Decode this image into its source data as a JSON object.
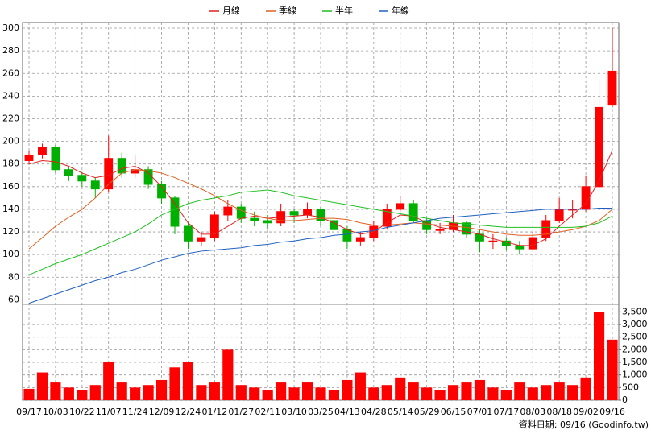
{
  "chart_data": {
    "type": "candlestick",
    "categories": [
      "09/17",
      null,
      "10/03",
      null,
      "10/22",
      null,
      "11/07",
      null,
      "11/24",
      null,
      "12/09",
      null,
      "12/24",
      null,
      "01/12",
      null,
      "01/27",
      null,
      "02/11",
      null,
      "03/10",
      null,
      "03/25",
      null,
      "04/13",
      null,
      "04/28",
      null,
      "05/14",
      null,
      "05/29",
      null,
      "06/15",
      null,
      "07/01",
      null,
      "07/17",
      null,
      "08/03",
      null,
      "08/18",
      null,
      "09/02",
      null,
      "09/16"
    ],
    "open": [
      183,
      188,
      195,
      175,
      170,
      165,
      158,
      185,
      172,
      175,
      162,
      150,
      125,
      112,
      115,
      135,
      142,
      132,
      130,
      128,
      138,
      135,
      140,
      130,
      122,
      112,
      115,
      125,
      140,
      145,
      130,
      122,
      122,
      128,
      118,
      112,
      112,
      108,
      105,
      115,
      130,
      140,
      140,
      160,
      232
    ],
    "high": [
      192,
      198,
      197,
      178,
      173,
      168,
      205,
      190,
      188,
      178,
      165,
      152,
      128,
      120,
      138,
      148,
      145,
      138,
      135,
      145,
      140,
      146,
      142,
      133,
      125,
      120,
      130,
      145,
      152,
      148,
      132,
      128,
      135,
      130,
      122,
      118,
      115,
      112,
      120,
      135,
      150,
      148,
      170,
      255,
      300
    ],
    "low": [
      180,
      185,
      172,
      165,
      160,
      150,
      155,
      168,
      168,
      158,
      145,
      118,
      105,
      108,
      112,
      130,
      128,
      125,
      122,
      125,
      128,
      132,
      125,
      115,
      105,
      108,
      112,
      122,
      138,
      128,
      118,
      118,
      120,
      115,
      102,
      105,
      104,
      100,
      104,
      112,
      128,
      132,
      138,
      158,
      230
    ],
    "close": [
      188,
      195,
      175,
      170,
      165,
      158,
      185,
      172,
      175,
      162,
      150,
      125,
      112,
      115,
      135,
      142,
      132,
      130,
      128,
      138,
      135,
      140,
      130,
      122,
      112,
      115,
      125,
      140,
      145,
      130,
      122,
      122,
      128,
      118,
      112,
      112,
      108,
      105,
      115,
      130,
      140,
      140,
      160,
      230,
      262
    ],
    "up_color": "#ff0000",
    "down_color": "#00b000",
    "ylim": [
      56,
      305
    ],
    "yticks": [
      60,
      80,
      100,
      120,
      140,
      160,
      180,
      200,
      220,
      240,
      260,
      280,
      300
    ],
    "grid": true,
    "series": [
      {
        "name": "月線",
        "color": "#e02020",
        "values": [
          180,
          183,
          182,
          178,
          172,
          168,
          170,
          176,
          178,
          172,
          160,
          145,
          128,
          118,
          118,
          125,
          132,
          134,
          132,
          133,
          134,
          135,
          133,
          128,
          122,
          118,
          120,
          128,
          135,
          134,
          128,
          124,
          122,
          120,
          118,
          114,
          111,
          108,
          108,
          114,
          125,
          135,
          145,
          165,
          192
        ]
      },
      {
        "name": "季線",
        "color": "#e06020",
        "values": [
          105,
          115,
          125,
          133,
          140,
          150,
          162,
          172,
          175,
          174,
          172,
          168,
          163,
          158,
          152,
          145,
          139,
          135,
          132,
          130,
          130,
          131,
          132,
          132,
          131,
          128,
          126,
          126,
          127,
          128,
          127,
          126,
          125,
          124,
          122,
          120,
          118,
          117,
          117,
          118,
          120,
          122,
          125,
          130,
          140
        ]
      },
      {
        "name": "半年",
        "color": "#20c020",
        "values": [
          82,
          87,
          92,
          96,
          100,
          105,
          110,
          115,
          120,
          127,
          135,
          140,
          145,
          148,
          150,
          152,
          155,
          156,
          157,
          155,
          152,
          150,
          148,
          146,
          144,
          142,
          140,
          138,
          136,
          134,
          132,
          130,
          128,
          127,
          126,
          125,
          124,
          124,
          124,
          124,
          124,
          124,
          125,
          128,
          134
        ]
      },
      {
        "name": "年線",
        "color": "#2060c0",
        "values": [
          57,
          61,
          65,
          69,
          73,
          77,
          80,
          84,
          87,
          91,
          95,
          98,
          101,
          103,
          104,
          105,
          106,
          108,
          109,
          111,
          112,
          114,
          115,
          117,
          118,
          120,
          121,
          124,
          126,
          128,
          130,
          132,
          133,
          134,
          135,
          136,
          137,
          138,
          139,
          140,
          140,
          140,
          140,
          141,
          141
        ]
      }
    ],
    "volume": {
      "color": "#ff0000",
      "values": [
        450,
        1100,
        700,
        500,
        400,
        600,
        1500,
        700,
        500,
        600,
        800,
        1300,
        1500,
        600,
        700,
        2000,
        600,
        500,
        400,
        700,
        500,
        700,
        500,
        400,
        800,
        1100,
        500,
        600,
        900,
        700,
        500,
        400,
        600,
        700,
        800,
        500,
        400,
        700,
        500,
        600,
        700,
        600,
        900,
        3500,
        2400
      ],
      "ylim": [
        0,
        3800
      ],
      "yticks": [
        0,
        500,
        {
          "value": 1000,
          "label": "1,000"
        },
        {
          "value": 1500,
          "label": "1,500"
        },
        {
          "value": 2000,
          "label": "2,000"
        },
        {
          "value": 2500,
          "label": "2,500"
        },
        {
          "value": 3000,
          "label": "3,000"
        },
        {
          "value": 3500,
          "label": "3,500"
        }
      ]
    },
    "source": "資料日期: 09/16 (Goodinfo.tw)"
  }
}
